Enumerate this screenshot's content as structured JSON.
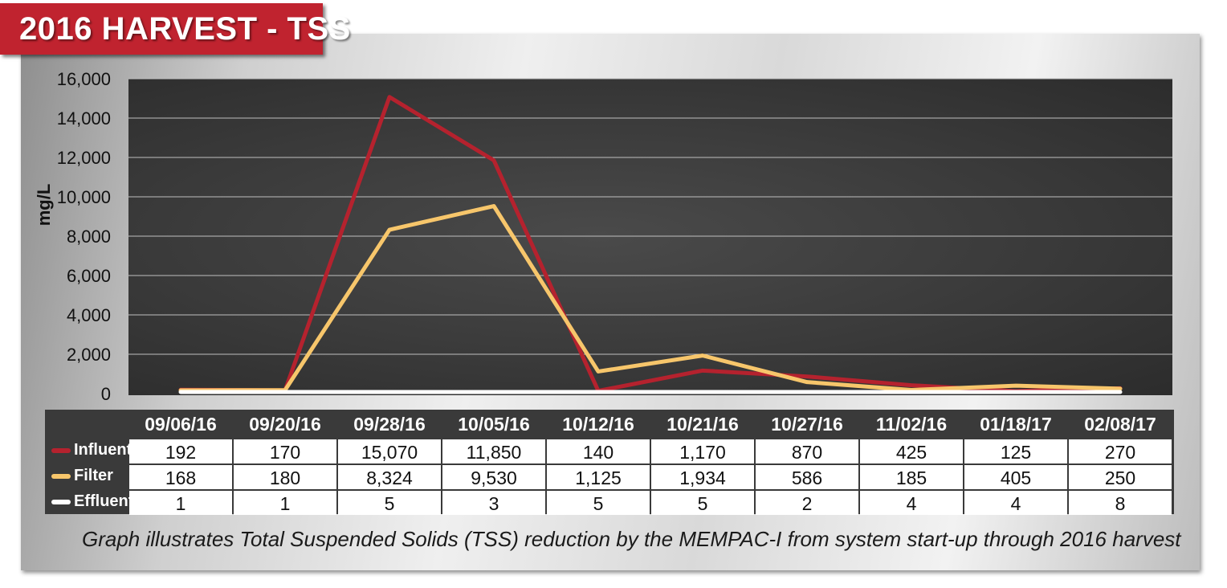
{
  "header": {
    "title": "2016 HARVEST - TSS"
  },
  "chart_data": {
    "type": "line",
    "title": "2016 HARVEST - TSS",
    "ylabel": "mg/L",
    "xlabel": "",
    "ylim": [
      0,
      16000
    ],
    "yticks": [
      0,
      2000,
      4000,
      6000,
      8000,
      10000,
      12000,
      14000,
      16000
    ],
    "ytick_labels": [
      "0",
      "2,000",
      "4,000",
      "6,000",
      "8,000",
      "10,000",
      "12,000",
      "14,000",
      "16,000"
    ],
    "grid": true,
    "categories": [
      "09/06/16",
      "09/20/16",
      "09/28/16",
      "10/05/16",
      "10/12/16",
      "10/21/16",
      "10/27/16",
      "11/02/16",
      "01/18/17",
      "02/08/17"
    ],
    "series": [
      {
        "name": "Influent",
        "color": "#b5222e",
        "values": [
          192,
          170,
          15070,
          11850,
          140,
          1170,
          870,
          425,
          125,
          270
        ],
        "labels": [
          "192",
          "170",
          "15,070",
          "11,850",
          "140",
          "1,170",
          "870",
          "425",
          "125",
          "270"
        ]
      },
      {
        "name": "Filter",
        "color": "#f7c66b",
        "values": [
          168,
          180,
          8324,
          9530,
          1125,
          1934,
          586,
          185,
          405,
          250
        ],
        "labels": [
          "168",
          "180",
          "8,324",
          "9,530",
          "1,125",
          "1,934",
          "586",
          "185",
          "405",
          "250"
        ]
      },
      {
        "name": "Effluent",
        "color": "#ffffff",
        "values": [
          1,
          1,
          5,
          3,
          5,
          5,
          2,
          4,
          4,
          8
        ],
        "labels": [
          "1",
          "1",
          "5",
          "3",
          "5",
          "5",
          "2",
          "4",
          "4",
          "8"
        ]
      }
    ]
  },
  "caption": "Graph illustrates Total Suspended Solids (TSS) reduction by the MEMPAC-I from system start-up through 2016 harvest"
}
